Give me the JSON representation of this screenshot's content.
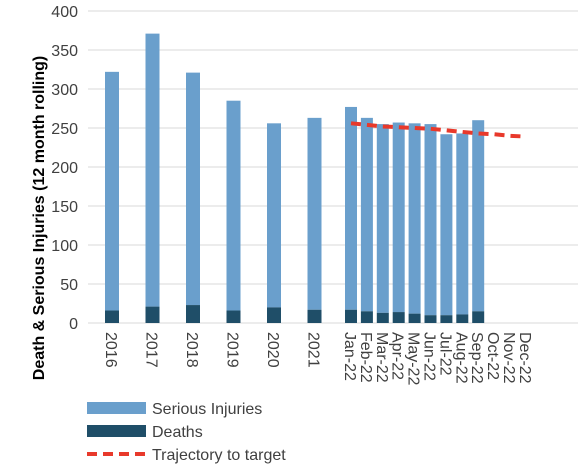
{
  "chart_data": {
    "type": "bar",
    "ylabel": "Death & Serious Injuries (12 month rolling)",
    "ylim": [
      0,
      400
    ],
    "yticks": [
      0,
      50,
      100,
      150,
      200,
      250,
      300,
      350,
      400
    ],
    "grid": true,
    "legend_position": "bottom-left",
    "categories": [
      "2016",
      "2017",
      "2018",
      "2019",
      "2020",
      "2021",
      "Jan-22",
      "Feb-22",
      "Mar-22",
      "Apr-22",
      "May-22",
      "Jun-22",
      "Jul-22",
      "Aug-22",
      "Sep-22",
      "Oct-22",
      "Nov-22",
      "Dec-22"
    ],
    "series": [
      {
        "name": "Serious Injuries",
        "kind": "stacked-bar",
        "color": "#6a9fcc",
        "values": [
          306,
          350,
          298,
          269,
          236,
          246,
          260,
          248,
          242,
          243,
          244,
          245,
          232,
          232,
          245,
          null,
          null,
          null
        ]
      },
      {
        "name": "Deaths",
        "kind": "stacked-bar",
        "color": "#1f4e68",
        "values": [
          16,
          21,
          23,
          16,
          20,
          17,
          17,
          15,
          13,
          14,
          12,
          10,
          10,
          11,
          15,
          null,
          null,
          null
        ]
      },
      {
        "name": "Trajectory to target",
        "kind": "dashed-line",
        "color": "#e8392b",
        "values": [
          null,
          null,
          null,
          null,
          null,
          null,
          256,
          254,
          252,
          251,
          250,
          249,
          247,
          245,
          243,
          242,
          240,
          239
        ]
      }
    ]
  }
}
